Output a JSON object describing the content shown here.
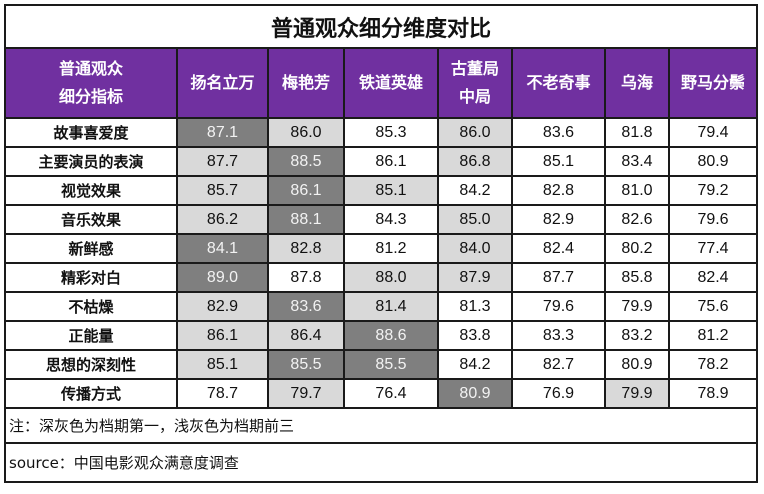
{
  "title": "普通观众细分维度对比",
  "header": {
    "corner_line1": "普通观众",
    "corner_line2": "细分指标",
    "movies": [
      {
        "line1": "扬名立万",
        "line2": ""
      },
      {
        "line1": "梅艳芳",
        "line2": ""
      },
      {
        "line1": "铁道英雄",
        "line2": ""
      },
      {
        "line1": "古董局",
        "line2": "中局"
      },
      {
        "line1": "不老奇事",
        "line2": ""
      },
      {
        "line1": "乌海",
        "line2": ""
      },
      {
        "line1": "野马分鬃",
        "line2": ""
      }
    ]
  },
  "rows": [
    {
      "label": "故事喜爱度",
      "values": [
        "87.1",
        "86.0",
        "85.3",
        "86.0",
        "83.6",
        "81.8",
        "79.4"
      ],
      "shade": [
        "dark",
        "light",
        "",
        "light",
        "",
        "",
        ""
      ]
    },
    {
      "label": "主要演员的表演",
      "values": [
        "87.7",
        "88.5",
        "86.1",
        "86.8",
        "85.1",
        "83.4",
        "80.9"
      ],
      "shade": [
        "light",
        "dark",
        "",
        "light",
        "",
        "",
        ""
      ]
    },
    {
      "label": "视觉效果",
      "values": [
        "85.7",
        "86.1",
        "85.1",
        "84.2",
        "82.8",
        "81.0",
        "79.2"
      ],
      "shade": [
        "light",
        "dark",
        "light",
        "",
        "",
        "",
        ""
      ]
    },
    {
      "label": "音乐效果",
      "values": [
        "86.2",
        "88.1",
        "84.3",
        "85.0",
        "82.9",
        "82.6",
        "79.6"
      ],
      "shade": [
        "light",
        "dark",
        "",
        "light",
        "",
        "",
        ""
      ]
    },
    {
      "label": "新鲜感",
      "values": [
        "84.1",
        "82.8",
        "81.2",
        "84.0",
        "82.4",
        "80.2",
        "77.4"
      ],
      "shade": [
        "dark",
        "light",
        "",
        "light",
        "",
        "",
        ""
      ]
    },
    {
      "label": "精彩对白",
      "values": [
        "89.0",
        "87.8",
        "88.0",
        "87.9",
        "87.7",
        "85.8",
        "82.4"
      ],
      "shade": [
        "dark",
        "",
        "light",
        "light",
        "",
        "",
        ""
      ]
    },
    {
      "label": "不枯燥",
      "values": [
        "82.9",
        "83.6",
        "81.4",
        "81.3",
        "79.6",
        "79.9",
        "75.6"
      ],
      "shade": [
        "light",
        "dark",
        "light",
        "",
        "",
        "",
        ""
      ]
    },
    {
      "label": "正能量",
      "values": [
        "86.1",
        "86.4",
        "88.6",
        "83.8",
        "83.3",
        "83.2",
        "81.2"
      ],
      "shade": [
        "light",
        "light",
        "dark",
        "",
        "",
        "",
        ""
      ]
    },
    {
      "label": "思想的深刻性",
      "values": [
        "85.1",
        "85.5",
        "85.5",
        "84.2",
        "82.7",
        "80.9",
        "78.2"
      ],
      "shade": [
        "light",
        "dark",
        "dark",
        "",
        "",
        "",
        ""
      ]
    },
    {
      "label": "传播方式",
      "values": [
        "78.7",
        "79.7",
        "76.4",
        "80.9",
        "76.9",
        "79.9",
        "78.9"
      ],
      "shade": [
        "",
        "light",
        "",
        "dark",
        "",
        "light",
        ""
      ]
    }
  ],
  "note": "注：深灰色为档期第一，浅灰色为档期前三",
  "source": "source：中国电影观众满意度调查",
  "colors": {
    "header_bg": "#7030A0",
    "dark": "#7f7f7f",
    "light": "#d9d9d9"
  }
}
